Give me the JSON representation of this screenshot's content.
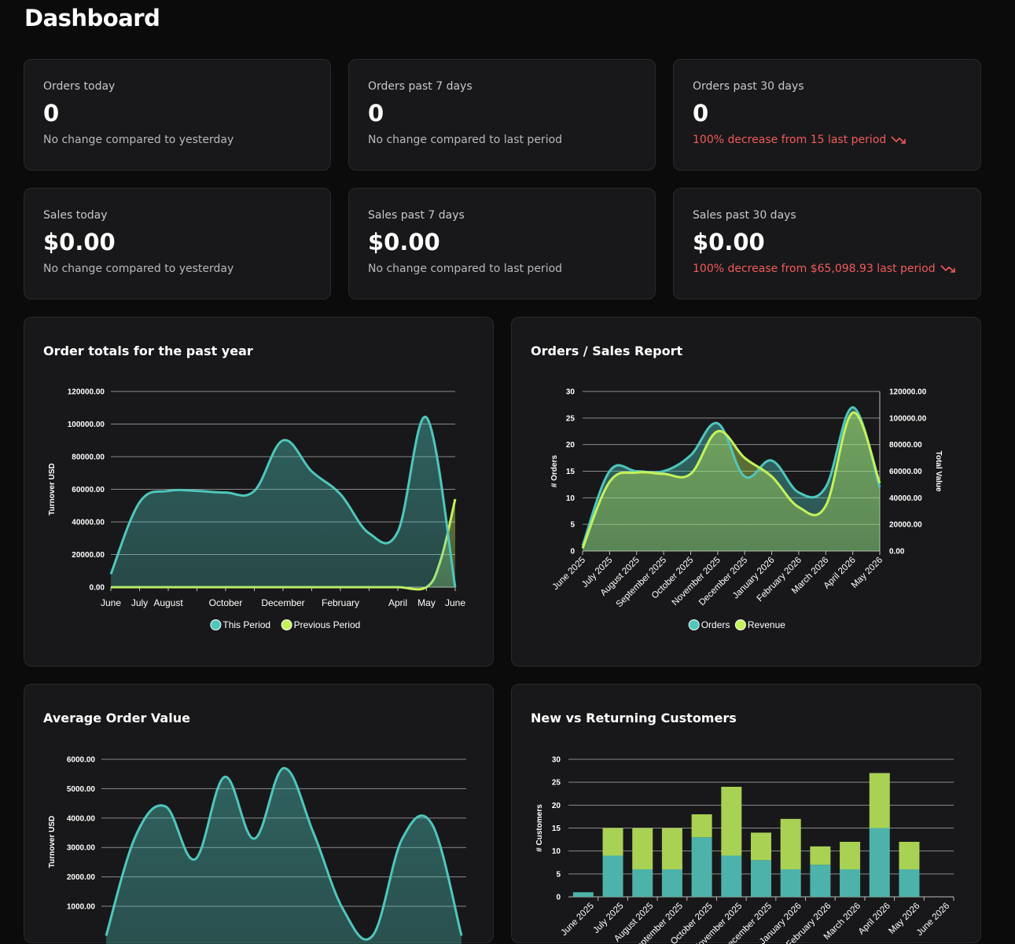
{
  "page": {
    "title": "Dashboard"
  },
  "stats": [
    {
      "label": "Orders today",
      "value": "0",
      "compare": "No change compared to yesterday",
      "negative": false
    },
    {
      "label": "Orders past 7 days",
      "value": "0",
      "compare": "No change compared to last period",
      "negative": false
    },
    {
      "label": "Orders past 30 days",
      "value": "0",
      "compare": "100% decrease from 15 last period",
      "negative": true
    },
    {
      "label": "Sales today",
      "value": "$0.00",
      "compare": "No change compared to yesterday",
      "negative": false
    },
    {
      "label": "Sales past 7 days",
      "value": "$0.00",
      "compare": "No change compared to last period",
      "negative": false
    },
    {
      "label": "Sales past 30 days",
      "value": "$0.00",
      "compare": "100% decrease from $65,098.93 last period",
      "negative": true
    }
  ],
  "icons": {
    "trend_down": "trend-down-icon"
  },
  "colors": {
    "teal": "#4fc7bd",
    "lime": "#c5f25a",
    "negative": "#f25a5a",
    "card": "#18181a"
  },
  "charts": {
    "order_totals": {
      "title": "Order totals for the past year"
    },
    "orders_sales": {
      "title": "Orders / Sales Report"
    },
    "avg_order": {
      "title": "Average Order Value"
    },
    "customers": {
      "title": "New vs Returning Customers"
    }
  },
  "chart_data": [
    {
      "type": "area",
      "title": "Order totals for the past year",
      "ylabel": "Turnover USD",
      "ylim": [
        0,
        120000
      ],
      "yticks": [
        "0.00",
        "20000.00",
        "40000.00",
        "60000.00",
        "80000.00",
        "100000.00",
        "120000.00"
      ],
      "xticks": [
        "June",
        "July",
        "August",
        "October",
        "December",
        "February",
        "April",
        "May",
        "June"
      ],
      "legend": {
        "position": "bottom"
      },
      "series": [
        {
          "name": "This Period",
          "color": "#4fc7bd",
          "x": [
            0,
            1,
            2,
            3,
            4,
            5,
            6,
            7,
            8,
            9,
            10,
            11,
            12
          ],
          "y": [
            8000,
            52000,
            59000,
            59000,
            58000,
            59000,
            90000,
            71000,
            57000,
            33000,
            34000,
            104000,
            0
          ]
        },
        {
          "name": "Previous Period",
          "color": "#c5f25a",
          "x": [
            0,
            1,
            2,
            3,
            4,
            5,
            6,
            7,
            8,
            9,
            10,
            11,
            11.5,
            12
          ],
          "y": [
            0,
            0,
            0,
            0,
            0,
            0,
            0,
            0,
            0,
            0,
            0,
            0,
            17000,
            54000
          ]
        }
      ]
    },
    {
      "type": "area",
      "title": "Orders / Sales Report",
      "ylabel": "# Orders",
      "y2label": "Total Value",
      "ylim": [
        0,
        30
      ],
      "y2lim": [
        0,
        120000
      ],
      "yticks": [
        "0",
        "5",
        "10",
        "15",
        "20",
        "25",
        "30"
      ],
      "y2ticks": [
        "0.00",
        "20000.00",
        "40000.00",
        "60000.00",
        "80000.00",
        "100000.00",
        "120000.00"
      ],
      "categories": [
        "June 2025",
        "July 2025",
        "August 2025",
        "September 2025",
        "October 2025",
        "November 2025",
        "December 2025",
        "January 2026",
        "February 2026",
        "March 2026",
        "April 2026",
        "May 2026"
      ],
      "legend": {
        "position": "bottom"
      },
      "series": [
        {
          "name": "Orders",
          "color": "#4fc7bd",
          "values": [
            1,
            15,
            15,
            15,
            18,
            24,
            14,
            17,
            11,
            12,
            27,
            12
          ]
        },
        {
          "name": "Revenue",
          "color": "#c5f25a",
          "values": [
            2000,
            52000,
            59000,
            58000,
            58000,
            90000,
            70000,
            56000,
            33000,
            34000,
            104000,
            51000
          ]
        }
      ]
    },
    {
      "type": "area",
      "title": "Average Order Value",
      "ylabel": "Turnover USD",
      "ylim": [
        0,
        6000
      ],
      "yticks": [
        "1000.00",
        "2000.00",
        "3000.00",
        "4000.00",
        "5000.00",
        "6000.00"
      ],
      "series": [
        {
          "name": "",
          "color": "#4fc7bd",
          "x": [
            0,
            1,
            2,
            3,
            4,
            5,
            6,
            7,
            8,
            9,
            10,
            11,
            12
          ],
          "y": [
            0,
            3400,
            4400,
            2600,
            5400,
            3300,
            5700,
            3500,
            900,
            0,
            3300,
            3800,
            0
          ]
        }
      ]
    },
    {
      "type": "bar",
      "stacked": true,
      "title": "New vs Returning Customers",
      "ylabel": "# Customers",
      "ylim": [
        0,
        30
      ],
      "yticks": [
        "0",
        "5",
        "10",
        "15",
        "20",
        "25",
        "30"
      ],
      "categories": [
        "June 2025",
        "July 2025",
        "August 2025",
        "September 2025",
        "October 2025",
        "November 2025",
        "December 2025",
        "January 2026",
        "February 2026",
        "March 2026",
        "April 2026",
        "May 2026",
        "June 2026"
      ],
      "series": [
        {
          "name": "",
          "color": "#4db3aa",
          "values": [
            1,
            9,
            6,
            6,
            13,
            9,
            8,
            6,
            7,
            6,
            15,
            6,
            0
          ]
        },
        {
          "name": "",
          "color": "#a9d154",
          "values": [
            0,
            6,
            9,
            9,
            5,
            15,
            6,
            11,
            4,
            6,
            12,
            6,
            0
          ]
        }
      ]
    }
  ]
}
